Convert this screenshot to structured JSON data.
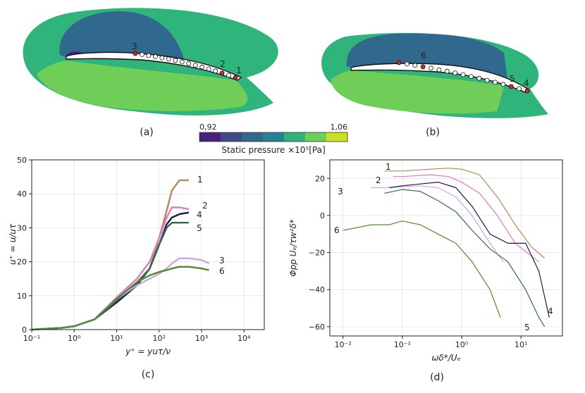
{
  "figure": {
    "panel_a": {
      "caption": "(a)",
      "probes": [
        "3",
        "2",
        "1"
      ]
    },
    "panel_b": {
      "caption": "(b)",
      "probes": [
        "6",
        "5",
        "4"
      ]
    },
    "colorbar": {
      "min_label": "0,92",
      "max_label": "1,06",
      "label": "Static pressure ×10⁵[Pa]",
      "colors": [
        "#46237a",
        "#3e4a89",
        "#31688e",
        "#26838f",
        "#2fb47c",
        "#6ece58",
        "#c7e020"
      ]
    },
    "colors": {
      "outer_field": "#2fb47c",
      "upper_dark": "#31688e",
      "lower_field": "#6ece58",
      "probe_red": "#d62728"
    }
  },
  "chart_data": [
    {
      "type": "line",
      "panel": "(c)",
      "caption": "(c)",
      "xlabel": "y⁺ = yuτ/ν",
      "ylabel": "u⁺ = u/uτ",
      "xscale": "log",
      "xlim": [
        0.1,
        30000
      ],
      "ylim": [
        0,
        50
      ],
      "xticks": [
        {
          "v": 0.1,
          "label": "10⁻¹"
        },
        {
          "v": 1,
          "label": "10⁰"
        },
        {
          "v": 10,
          "label": "10¹"
        },
        {
          "v": 100,
          "label": "10²"
        },
        {
          "v": 1000,
          "label": "10³"
        },
        {
          "v": 10000,
          "label": "10⁴"
        }
      ],
      "yticks": [
        {
          "v": 0,
          "label": "0"
        },
        {
          "v": 10,
          "label": "10"
        },
        {
          "v": 20,
          "label": "20"
        },
        {
          "v": 30,
          "label": "30"
        },
        {
          "v": 40,
          "label": "40"
        },
        {
          "v": 50,
          "label": "50"
        }
      ],
      "series": [
        {
          "name": "1",
          "color": "#b5875a",
          "x": [
            0.1,
            0.5,
            1,
            3,
            10,
            30,
            60,
            100,
            150,
            200,
            300,
            500
          ],
          "y": [
            0,
            0.5,
            1,
            3,
            8.5,
            14,
            18,
            27,
            35,
            41,
            44,
            44
          ]
        },
        {
          "name": "2",
          "color": "#e377c2",
          "x": [
            0.1,
            0.5,
            1,
            3,
            10,
            30,
            60,
            100,
            150,
            200,
            300,
            500
          ],
          "y": [
            0,
            0.5,
            1,
            3,
            9.5,
            15,
            20,
            27,
            33,
            36,
            36,
            35.5
          ]
        },
        {
          "name": "4",
          "color": "#1a1a3e",
          "x": [
            0.1,
            0.5,
            1,
            3,
            10,
            30,
            60,
            100,
            150,
            200,
            300,
            500
          ],
          "y": [
            0,
            0.5,
            1,
            3,
            8,
            13,
            18,
            25,
            31,
            33,
            34,
            34.5
          ]
        },
        {
          "name": "5",
          "color": "#2e6b4e",
          "x": [
            0.1,
            0.5,
            1,
            3,
            10,
            30,
            60,
            100,
            150,
            200,
            300,
            500
          ],
          "y": [
            0,
            0.5,
            1,
            3,
            8.5,
            13.5,
            18,
            25,
            30,
            31.5,
            31.5,
            31.5
          ]
        },
        {
          "name": "3",
          "color": "#c9a6e8",
          "x": [
            0.1,
            0.5,
            1,
            3,
            10,
            30,
            60,
            100,
            150,
            200,
            300,
            500,
            1000,
            1500
          ],
          "y": [
            0,
            0.5,
            1,
            3,
            9,
            13,
            15,
            16.5,
            18,
            19.5,
            21,
            21,
            20.5,
            19.5
          ]
        },
        {
          "name": "6",
          "color": "#4f8a2e",
          "x": [
            0.1,
            0.5,
            1,
            3,
            10,
            30,
            60,
            100,
            150,
            200,
            300,
            500,
            1000,
            1500
          ],
          "y": [
            0,
            0.5,
            1,
            3,
            9,
            14,
            16,
            17,
            17.5,
            18,
            18.5,
            18.5,
            18,
            17.5
          ]
        }
      ]
    },
    {
      "type": "line",
      "panel": "(d)",
      "caption": "(d)",
      "xlabel": "ωδ*/Uₑ",
      "ylabel": "Φpp Uₑ/τw²δ*",
      "xscale": "log",
      "xlim": [
        0.006,
        50
      ],
      "ylim": [
        -65,
        30
      ],
      "xticks": [
        {
          "v": 0.01,
          "label": "10⁻²"
        },
        {
          "v": 0.1,
          "label": "10⁻¹"
        },
        {
          "v": 1,
          "label": "10⁰"
        },
        {
          "v": 10,
          "label": "10¹"
        }
      ],
      "yticks": [
        {
          "v": 20,
          "label": "20"
        },
        {
          "v": 0,
          "label": "0"
        },
        {
          "v": -20,
          "label": "−20"
        },
        {
          "v": -40,
          "label": "−40"
        },
        {
          "v": -60,
          "label": "−60"
        }
      ],
      "series": [
        {
          "name": "1",
          "color": "#b5875a",
          "x": [
            0.05,
            0.1,
            0.3,
            0.6,
            1,
            2,
            4,
            8,
            15,
            25
          ],
          "y": [
            24,
            24,
            25,
            25.5,
            25,
            22,
            10,
            -5,
            -17,
            -23
          ]
        },
        {
          "name": "2",
          "color": "#e377c2",
          "x": [
            0.07,
            0.1,
            0.3,
            0.6,
            1,
            2,
            4,
            8,
            15,
            20
          ],
          "y": [
            21,
            21,
            22,
            21,
            18,
            12,
            0,
            -15,
            -22,
            -25
          ]
        },
        {
          "name": "3",
          "color": "#c9a6e8",
          "x": [
            0.03,
            0.05,
            0.1,
            0.2,
            0.4,
            0.8,
            1.5,
            3,
            5
          ],
          "y": [
            15,
            15,
            15.5,
            16,
            15,
            10,
            0,
            -15,
            -25
          ]
        },
        {
          "name": "4",
          "color": "#1a1a3e",
          "x": [
            0.06,
            0.1,
            0.2,
            0.4,
            0.8,
            1.5,
            3,
            6,
            12,
            20,
            30
          ],
          "y": [
            15,
            16,
            17,
            18,
            15,
            5,
            -10,
            -15,
            -15,
            -30,
            -55
          ]
        },
        {
          "name": "5",
          "color": "#2e6b4e",
          "x": [
            0.05,
            0.1,
            0.2,
            0.4,
            0.8,
            1.5,
            3,
            6,
            12,
            20,
            25
          ],
          "y": [
            12,
            14,
            13,
            8,
            2,
            -8,
            -18,
            -25,
            -40,
            -55,
            -60
          ]
        },
        {
          "name": "6",
          "color": "#4f8a2e",
          "x": [
            0.01,
            0.03,
            0.06,
            0.1,
            0.2,
            0.4,
            0.8,
            1.5,
            3,
            4.5
          ],
          "y": [
            -8,
            -5,
            -5,
            -3,
            -5,
            -10,
            -15,
            -25,
            -40,
            -55
          ]
        }
      ]
    }
  ]
}
